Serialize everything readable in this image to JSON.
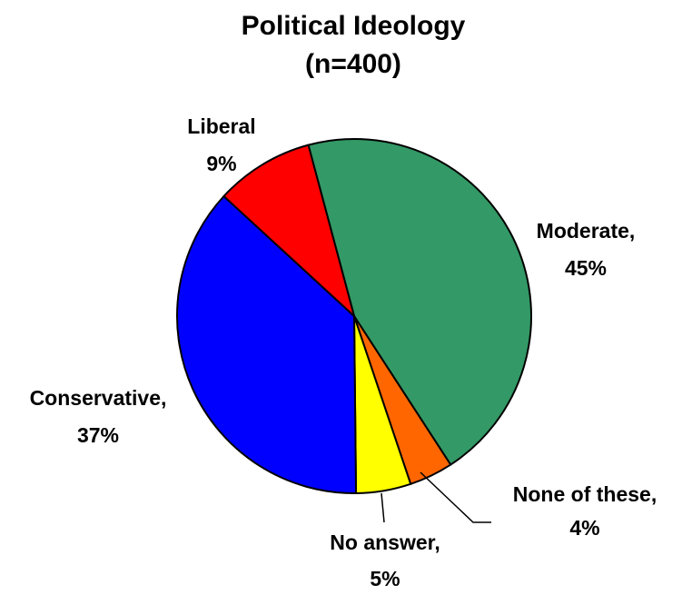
{
  "chart_data": {
    "type": "pie",
    "title": [
      "Political Ideology",
      "(n=400)"
    ],
    "slices": [
      {
        "name": "Moderate,",
        "value_label": "45%",
        "value": 45,
        "color": "#339966"
      },
      {
        "name": "None of these,",
        "value_label": "4%",
        "value": 4,
        "color": "#FF6600"
      },
      {
        "name": "No answer,",
        "value_label": "5%",
        "value": 5,
        "color": "#FFFF00"
      },
      {
        "name": "Conservative,",
        "value_label": "37%",
        "value": 37,
        "color": "#0000FF"
      },
      {
        "name": "Liberal",
        "value_label": "9%",
        "value": 9,
        "color": "#FF0000"
      }
    ],
    "start_angle_deg": -15,
    "direction": "clockwise",
    "legend": "none"
  }
}
